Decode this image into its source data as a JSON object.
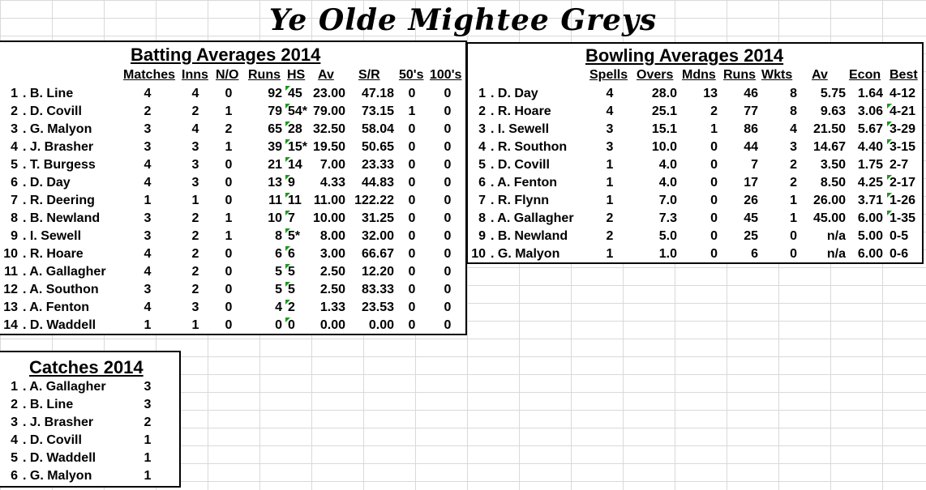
{
  "page_title": "Ye Olde Mightee Greys",
  "batting": {
    "title": "Batting Averages 2014",
    "headers": [
      "Matches",
      "Inns",
      "N/O",
      "Runs",
      "HS",
      "Av",
      "S/R",
      "50's",
      "100's"
    ],
    "rows": [
      {
        "rank": "1",
        "name": ". B. Line",
        "matches": "4",
        "inns": "4",
        "no": "0",
        "runs": "92",
        "hs": "45",
        "av": "23.00",
        "sr": "47.18",
        "fifties": "0",
        "hundreds": "0"
      },
      {
        "rank": "2",
        "name": ". D. Covill",
        "matches": "2",
        "inns": "2",
        "no": "1",
        "runs": "79",
        "hs": "54*",
        "av": "79.00",
        "sr": "73.15",
        "fifties": "1",
        "hundreds": "0"
      },
      {
        "rank": "3",
        "name": ". G. Malyon",
        "matches": "3",
        "inns": "4",
        "no": "2",
        "runs": "65",
        "hs": "28",
        "av": "32.50",
        "sr": "58.04",
        "fifties": "0",
        "hundreds": "0"
      },
      {
        "rank": "4",
        "name": ". J. Brasher",
        "matches": "3",
        "inns": "3",
        "no": "1",
        "runs": "39",
        "hs": "15*",
        "av": "19.50",
        "sr": "50.65",
        "fifties": "0",
        "hundreds": "0"
      },
      {
        "rank": "5",
        "name": ". T. Burgess",
        "matches": "4",
        "inns": "3",
        "no": "0",
        "runs": "21",
        "hs": "14",
        "av": "7.00",
        "sr": "23.33",
        "fifties": "0",
        "hundreds": "0"
      },
      {
        "rank": "6",
        "name": ". D. Day",
        "matches": "4",
        "inns": "3",
        "no": "0",
        "runs": "13",
        "hs": "9",
        "av": "4.33",
        "sr": "44.83",
        "fifties": "0",
        "hundreds": "0"
      },
      {
        "rank": "7",
        "name": ". R. Deering",
        "matches": "1",
        "inns": "1",
        "no": "0",
        "runs": "11",
        "hs": "11",
        "av": "11.00",
        "sr": "122.22",
        "fifties": "0",
        "hundreds": "0"
      },
      {
        "rank": "8",
        "name": ". B. Newland",
        "matches": "3",
        "inns": "2",
        "no": "1",
        "runs": "10",
        "hs": "7",
        "av": "10.00",
        "sr": "31.25",
        "fifties": "0",
        "hundreds": "0"
      },
      {
        "rank": "9",
        "name": ". I. Sewell",
        "matches": "3",
        "inns": "2",
        "no": "1",
        "runs": "8",
        "hs": "5*",
        "av": "8.00",
        "sr": "32.00",
        "fifties": "0",
        "hundreds": "0"
      },
      {
        "rank": "10",
        "name": ". R. Hoare",
        "matches": "4",
        "inns": "2",
        "no": "0",
        "runs": "6",
        "hs": "6",
        "av": "3.00",
        "sr": "66.67",
        "fifties": "0",
        "hundreds": "0"
      },
      {
        "rank": "11",
        "name": ". A. Gallagher",
        "matches": "4",
        "inns": "2",
        "no": "0",
        "runs": "5",
        "hs": "5",
        "av": "2.50",
        "sr": "12.20",
        "fifties": "0",
        "hundreds": "0"
      },
      {
        "rank": "12",
        "name": ". A. Southon",
        "matches": "3",
        "inns": "2",
        "no": "0",
        "runs": "5",
        "hs": "5",
        "av": "2.50",
        "sr": "83.33",
        "fifties": "0",
        "hundreds": "0"
      },
      {
        "rank": "13",
        "name": ". A. Fenton",
        "matches": "4",
        "inns": "3",
        "no": "0",
        "runs": "4",
        "hs": "2",
        "av": "1.33",
        "sr": "23.53",
        "fifties": "0",
        "hundreds": "0"
      },
      {
        "rank": "14",
        "name": ". D. Waddell",
        "matches": "1",
        "inns": "1",
        "no": "0",
        "runs": "0",
        "hs": "0",
        "av": "0.00",
        "sr": "0.00",
        "fifties": "0",
        "hundreds": "0"
      }
    ]
  },
  "bowling": {
    "title": "Bowling Averages 2014",
    "headers": [
      "Spells",
      "Overs",
      "Mdns",
      "Runs",
      "Wkts",
      "Av",
      "Econ",
      "Best"
    ],
    "rows": [
      {
        "rank": "1",
        "name": ". D. Day",
        "spells": "4",
        "overs": "28.0",
        "mdns": "13",
        "runs": "46",
        "wkts": "8",
        "av": "5.75",
        "econ": "1.64",
        "best": "4-12"
      },
      {
        "rank": "2",
        "name": ". R. Hoare",
        "spells": "4",
        "overs": "25.1",
        "mdns": "2",
        "runs": "77",
        "wkts": "8",
        "av": "9.63",
        "econ": "3.06",
        "best": "4-21"
      },
      {
        "rank": "3",
        "name": ". I. Sewell",
        "spells": "3",
        "overs": "15.1",
        "mdns": "1",
        "runs": "86",
        "wkts": "4",
        "av": "21.50",
        "econ": "5.67",
        "best": "3-29"
      },
      {
        "rank": "4",
        "name": ". R. Southon",
        "spells": "3",
        "overs": "10.0",
        "mdns": "0",
        "runs": "44",
        "wkts": "3",
        "av": "14.67",
        "econ": "4.40",
        "best": "3-15"
      },
      {
        "rank": "5",
        "name": ". D. Covill",
        "spells": "1",
        "overs": "4.0",
        "mdns": "0",
        "runs": "7",
        "wkts": "2",
        "av": "3.50",
        "econ": "1.75",
        "best": "2-7"
      },
      {
        "rank": "6",
        "name": ". A. Fenton",
        "spells": "1",
        "overs": "4.0",
        "mdns": "0",
        "runs": "17",
        "wkts": "2",
        "av": "8.50",
        "econ": "4.25",
        "best": "2-17"
      },
      {
        "rank": "7",
        "name": ". R. Flynn",
        "spells": "1",
        "overs": "7.0",
        "mdns": "0",
        "runs": "26",
        "wkts": "1",
        "av": "26.00",
        "econ": "3.71",
        "best": "1-26"
      },
      {
        "rank": "8",
        "name": ". A. Gallagher",
        "spells": "2",
        "overs": "7.3",
        "mdns": "0",
        "runs": "45",
        "wkts": "1",
        "av": "45.00",
        "econ": "6.00",
        "best": "1-35"
      },
      {
        "rank": "9",
        "name": ". B. Newland",
        "spells": "2",
        "overs": "5.0",
        "mdns": "0",
        "runs": "25",
        "wkts": "0",
        "av": "n/a",
        "econ": "5.00",
        "best": "0-5"
      },
      {
        "rank": "10",
        "name": ". G. Malyon",
        "spells": "1",
        "overs": "1.0",
        "mdns": "0",
        "runs": "6",
        "wkts": "0",
        "av": "n/a",
        "econ": "6.00",
        "best": "0-6"
      }
    ]
  },
  "catches": {
    "title": "Catches 2014",
    "rows": [
      {
        "rank": "1",
        "name": ". A. Gallagher",
        "count": "3"
      },
      {
        "rank": "2",
        "name": ". B. Line",
        "count": "3"
      },
      {
        "rank": "3",
        "name": ". J. Brasher",
        "count": "2"
      },
      {
        "rank": "4",
        "name": ". D. Covill",
        "count": "1"
      },
      {
        "rank": "5",
        "name": ". D. Waddell",
        "count": "1"
      },
      {
        "rank": "6",
        "name": ". G. Malyon",
        "count": "1"
      }
    ]
  },
  "colors": {
    "grid": "#d9d9d9",
    "comment_marker": "#1a9a1a"
  }
}
